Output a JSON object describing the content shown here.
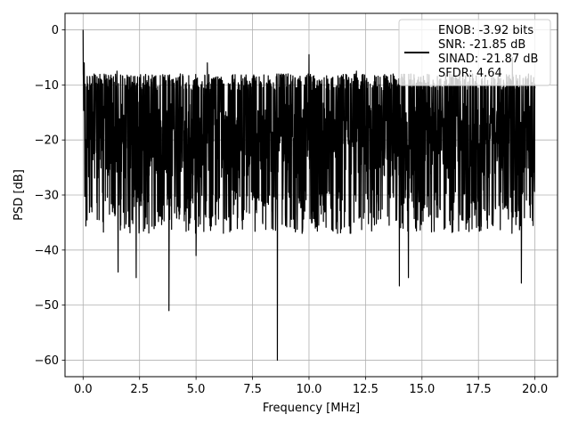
{
  "chart_data": {
    "type": "line",
    "title": "",
    "xlabel": "Frequency [MHz]",
    "ylabel": "PSD [dB]",
    "xlim": [
      -0.8,
      21.0
    ],
    "ylim": [
      -63.0,
      3.0
    ],
    "xticks": [
      0.0,
      2.5,
      5.0,
      7.5,
      10.0,
      12.5,
      15.0,
      17.5,
      20.0
    ],
    "xtick_labels": [
      "0.0",
      "2.5",
      "5.0",
      "7.5",
      "10.0",
      "12.5",
      "15.0",
      "17.5",
      "20.0"
    ],
    "yticks": [
      0,
      -10,
      -20,
      -30,
      -40,
      -50,
      -60
    ],
    "ytick_labels": [
      "0",
      "−10",
      "−20",
      "−30",
      "−40",
      "−50",
      "−60"
    ],
    "grid": true,
    "legend_position": "top-right",
    "series": [
      {
        "color": "#000000",
        "noise_floor_db": -20,
        "noise_band_db": [
          -35,
          -10
        ],
        "x_range": [
          0.0,
          20.0
        ],
        "peaks": [
          {
            "x": 0.0,
            "y": 0.0
          },
          {
            "x": 0.05,
            "y": -6.0
          },
          {
            "x": 1.5,
            "y": -7.5
          },
          {
            "x": 4.3,
            "y": -8.0
          },
          {
            "x": 5.5,
            "y": -6.0
          },
          {
            "x": 10.0,
            "y": -4.5
          },
          {
            "x": 12.1,
            "y": -7.5
          },
          {
            "x": 19.0,
            "y": -5.0
          }
        ],
        "dips": [
          {
            "x": 1.55,
            "y": -44.0
          },
          {
            "x": 2.35,
            "y": -45.0
          },
          {
            "x": 3.8,
            "y": -51.0
          },
          {
            "x": 5.0,
            "y": -41.0
          },
          {
            "x": 8.6,
            "y": -60.0
          },
          {
            "x": 14.0,
            "y": -46.5
          },
          {
            "x": 14.4,
            "y": -45.0
          },
          {
            "x": 19.4,
            "y": -46.0
          }
        ]
      }
    ],
    "legend_lines": [
      "ENOB: -3.92 bits",
      "SNR: -21.85 dB",
      "SINAD: -21.87 dB",
      "SFDR: 4.64"
    ]
  }
}
